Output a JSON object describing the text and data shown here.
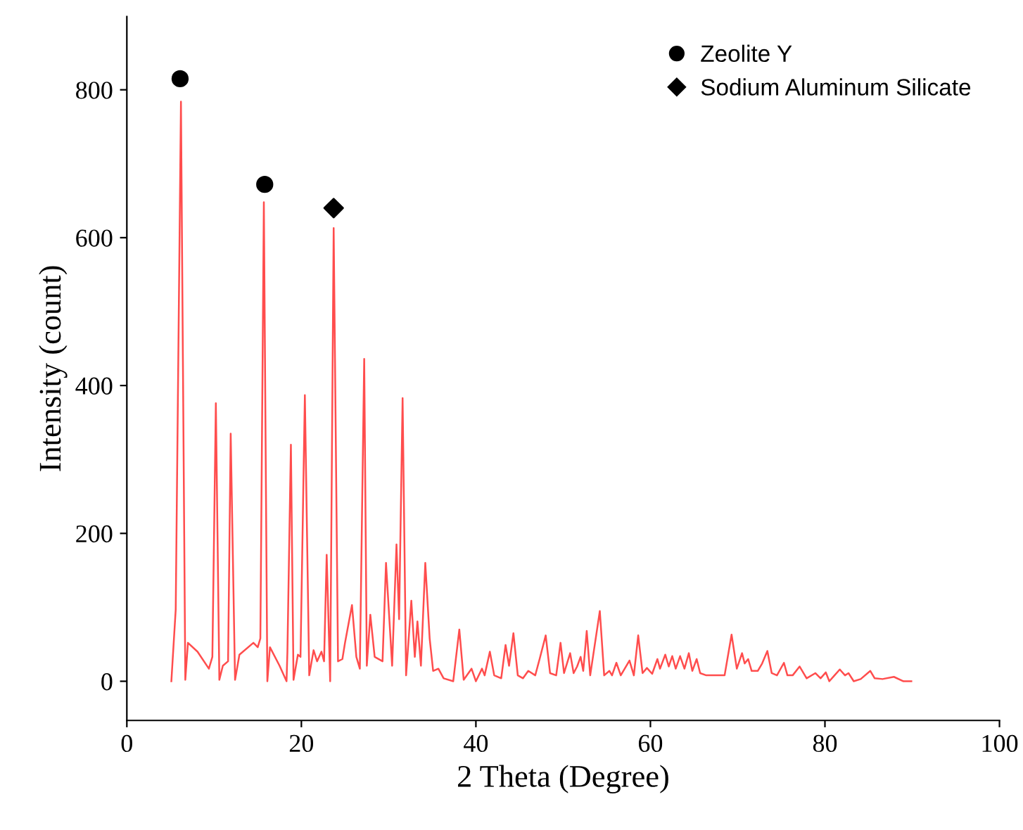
{
  "chart_data": {
    "type": "line",
    "xlabel": "2 Theta (Degree)",
    "ylabel": "Intensity (count)",
    "xlim": [
      0,
      100
    ],
    "xticks": [
      0,
      20,
      40,
      60,
      80,
      100
    ],
    "ylim": [
      -53,
      899
    ],
    "yticks": [
      0,
      200,
      400,
      600,
      800
    ],
    "grid": false,
    "legend": "top right",
    "series": [
      {
        "color": "#ff4d4d",
        "marker": "none",
        "line_style": "solid",
        "x": [
          5.1,
          5.6,
          6.2,
          6.7,
          7.0,
          8.1,
          9.4,
          9.8,
          10.2,
          10.6,
          11.0,
          11.6,
          11.9,
          12.4,
          12.9,
          14.5,
          15.0,
          15.3,
          15.7,
          16.1,
          16.4,
          17.5,
          18.3,
          18.4,
          18.8,
          19.1,
          19.6,
          19.9,
          20.4,
          20.9,
          21.4,
          21.8,
          22.3,
          22.6,
          22.9,
          23.3,
          23.7,
          24.2,
          24.7,
          25.0,
          25.8,
          26.3,
          26.7,
          27.2,
          27.5,
          27.9,
          28.4,
          29.3,
          29.7,
          30.4,
          30.9,
          31.2,
          31.6,
          32.0,
          32.6,
          33.0,
          33.3,
          33.7,
          34.2,
          34.7,
          35.1,
          35.7,
          36.3,
          37.4,
          38.1,
          38.6,
          39.5,
          40.0,
          40.7,
          41.0,
          41.6,
          42.1,
          42.9,
          43.4,
          43.8,
          44.3,
          44.8,
          45.4,
          46.0,
          46.8,
          47.3,
          48.0,
          48.5,
          49.2,
          49.7,
          50.1,
          50.8,
          51.2,
          51.6,
          52.0,
          52.3,
          52.7,
          53.1,
          54.2,
          54.7,
          55.3,
          55.6,
          56.1,
          56.6,
          57.6,
          58.1,
          58.6,
          59.1,
          59.6,
          60.2,
          60.8,
          61.1,
          61.7,
          62.1,
          62.5,
          62.9,
          63.4,
          63.9,
          64.4,
          64.8,
          65.3,
          65.7,
          66.4,
          67.5,
          68.5,
          69.3,
          69.9,
          70.5,
          70.8,
          71.2,
          71.6,
          72.3,
          72.8,
          73.4,
          73.9,
          74.5,
          75.3,
          75.7,
          76.3,
          77.1,
          77.9,
          78.9,
          79.5,
          80.1,
          80.5,
          81.1,
          81.7,
          82.3,
          82.7,
          83.3,
          84.1,
          85.2,
          85.7,
          86.6,
          87.9,
          89.0,
          89.9
        ],
        "values": [
          0,
          97,
          784,
          2,
          52,
          40,
          17,
          33,
          376,
          2,
          21,
          27,
          335,
          2,
          36,
          52,
          46,
          58,
          648,
          0,
          46,
          21,
          0,
          40,
          320,
          2,
          36,
          33,
          387,
          8,
          42,
          27,
          40,
          27,
          171,
          0,
          613,
          27,
          30,
          52,
          103,
          33,
          17,
          436,
          21,
          90,
          33,
          27,
          160,
          21,
          185,
          84,
          383,
          8,
          109,
          33,
          81,
          21,
          160,
          58,
          14,
          17,
          4,
          0,
          70,
          2,
          17,
          0,
          17,
          8,
          40,
          8,
          4,
          49,
          21,
          65,
          8,
          4,
          14,
          8,
          30,
          62,
          11,
          8,
          52,
          11,
          38,
          11,
          20,
          33,
          14,
          68,
          8,
          95,
          8,
          14,
          8,
          25,
          8,
          28,
          8,
          62,
          11,
          18,
          10,
          30,
          17,
          36,
          20,
          34,
          17,
          34,
          17,
          38,
          14,
          30,
          11,
          8,
          8,
          8,
          63,
          17,
          38,
          24,
          30,
          14,
          14,
          24,
          41,
          11,
          8,
          25,
          8,
          8,
          20,
          4,
          11,
          4,
          12,
          0,
          8,
          16,
          8,
          11,
          0,
          3,
          14,
          4,
          3,
          6,
          0,
          0
        ]
      },
      {
        "type": "scatter",
        "name": "Zeolite Y",
        "color": "#000000",
        "marker": "circle",
        "x": [
          6.1,
          15.8
        ],
        "values": [
          815,
          672
        ]
      },
      {
        "type": "scatter",
        "name": "Sodium Aluminum Silicate",
        "color": "#000000",
        "marker": "diamond",
        "x": [
          23.7
        ],
        "values": [
          640
        ]
      }
    ]
  }
}
